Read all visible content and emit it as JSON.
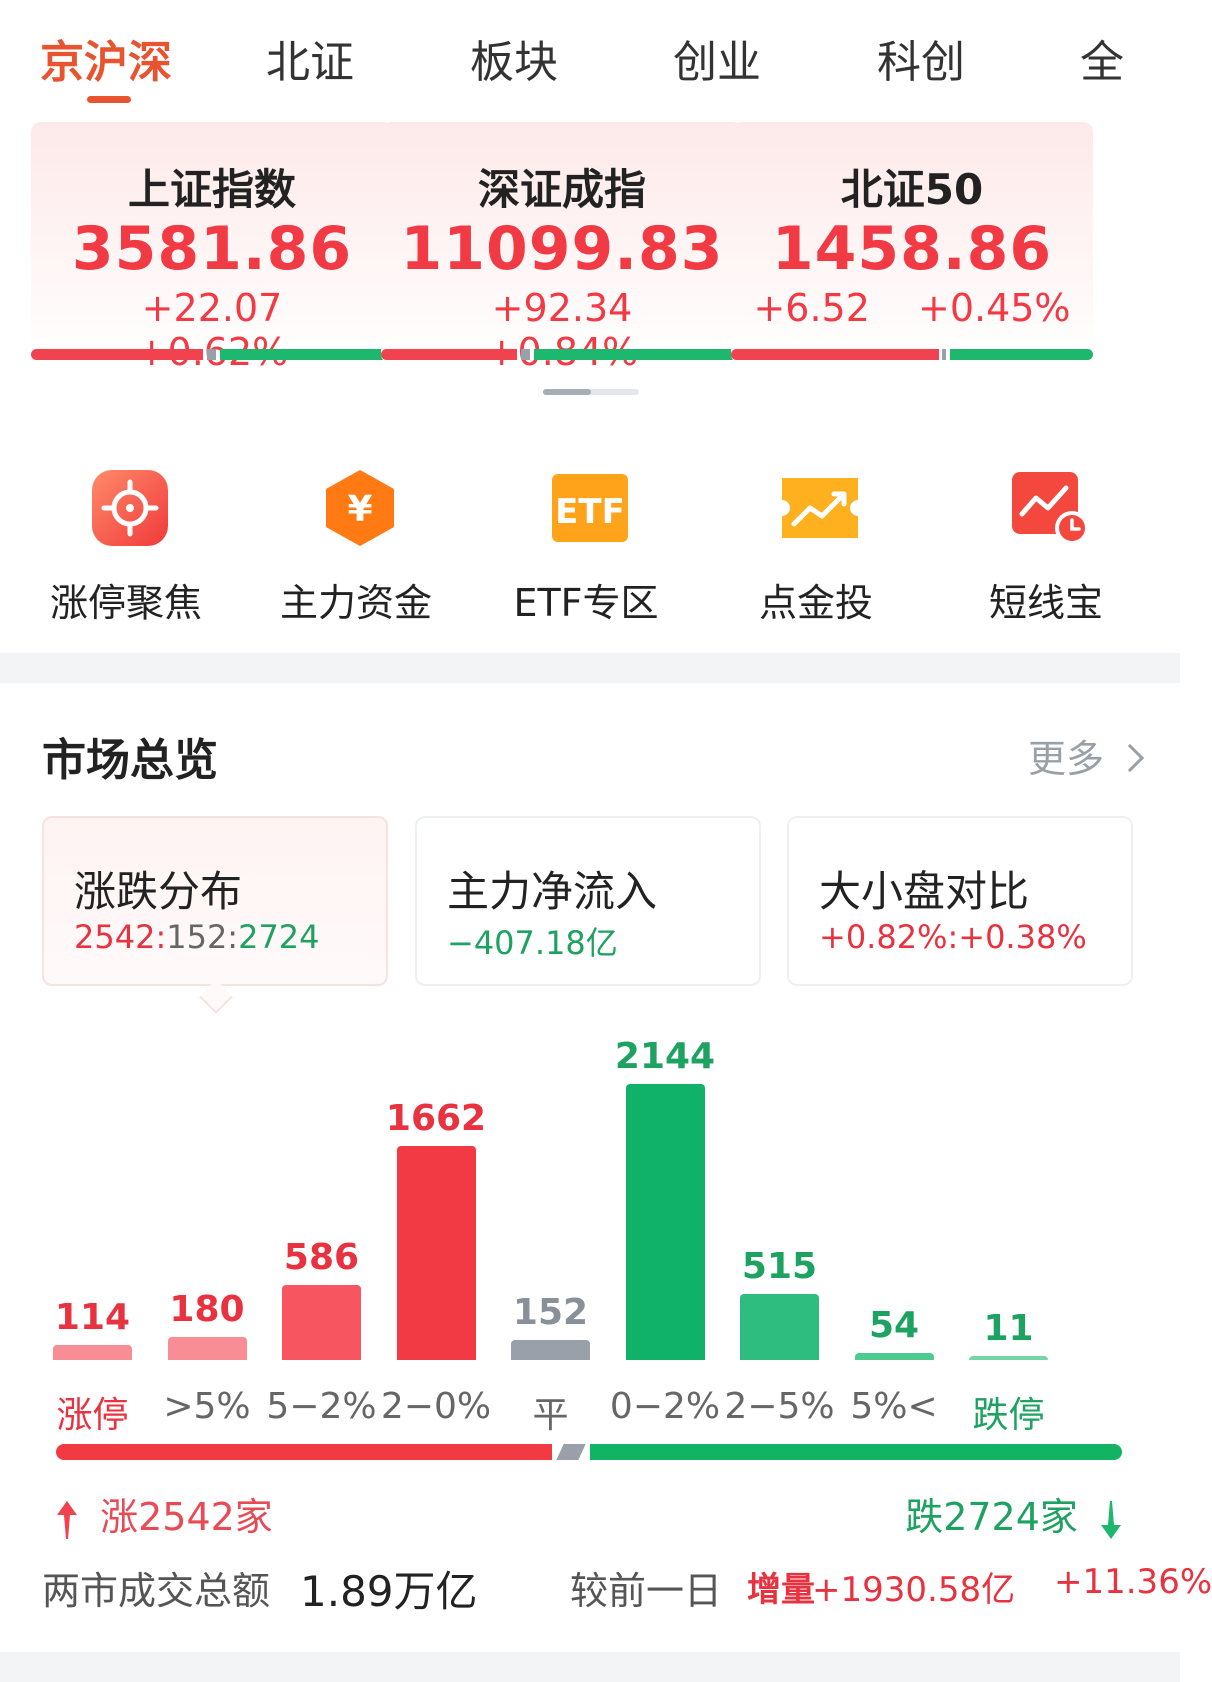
{
  "tabs": [
    {
      "label": "京沪深",
      "active": true
    },
    {
      "label": "北证",
      "active": false
    },
    {
      "label": "板块",
      "active": false
    },
    {
      "label": "创业",
      "active": false
    },
    {
      "label": "科创",
      "active": false
    },
    {
      "label": "全",
      "active": false
    }
  ],
  "indices": [
    {
      "name": "上证指数",
      "value": "3581.86",
      "change": "+22.07",
      "change_pct": "+0.62%"
    },
    {
      "name": "深证成指",
      "value": "11099.83",
      "change": "+92.34",
      "change_pct": "+0.84%"
    },
    {
      "name": "北证50",
      "value": "1458.86",
      "change": "+6.52",
      "change_pct": "+0.45%"
    }
  ],
  "shortcuts": [
    {
      "label": "涨停聚焦",
      "icon": "target-icon"
    },
    {
      "label": "主力资金",
      "icon": "yuan-hexagon-icon"
    },
    {
      "label": "ETF专区",
      "icon": "etf-icon"
    },
    {
      "label": "点金投",
      "icon": "trend-ticket-icon"
    },
    {
      "label": "短线宝",
      "icon": "chart-clock-icon"
    }
  ],
  "overview": {
    "title": "市场总览",
    "more": "更多",
    "cards": [
      {
        "title": "涨跌分布",
        "value": "2542:152:2724"
      },
      {
        "title": "主力净流入",
        "value": "−407.18亿"
      },
      {
        "title": "大小盘对比",
        "value": "+0.82%:+0.38%"
      }
    ]
  },
  "chart_data": {
    "type": "bar",
    "categories": [
      "涨停",
      ">5%",
      "5−2%",
      "2−0%",
      "平",
      "0−2%",
      "2−5%",
      "5%<",
      "跌停"
    ],
    "values": [
      114,
      180,
      586,
      1662,
      152,
      2144,
      515,
      54,
      11
    ],
    "colors": [
      "#f98d96",
      "#f98d96",
      "#f7555f",
      "#f23a45",
      "#9aa0aa",
      "#10b26a",
      "#2fbd7f",
      "#4cca8f",
      "#74d6a5"
    ],
    "value_colors": [
      "#e8323f",
      "#e8323f",
      "#e8323f",
      "#e8323f",
      "#8a909a",
      "#1ea262",
      "#1ea262",
      "#1ea262",
      "#1ea262"
    ],
    "label_colors": [
      "#e8323f",
      "#666666",
      "#666666",
      "#666666",
      "#666666",
      "#666666",
      "#666666",
      "#666666",
      "#1ea262"
    ]
  },
  "summary": {
    "up_label": "涨2542家",
    "down_label": "跌2724家",
    "up_count": 2542,
    "flat_count": 152,
    "down_count": 2724,
    "total_label": "两市成交总额",
    "total_value": "1.89万亿",
    "compare_label": "较前一日",
    "compare_tag": "增量",
    "compare_value": "+1930.58亿",
    "compare_pct": "+11.36%"
  },
  "colors": {
    "accent": "#e8542f",
    "up": "#f23a45",
    "down": "#1db86e"
  }
}
